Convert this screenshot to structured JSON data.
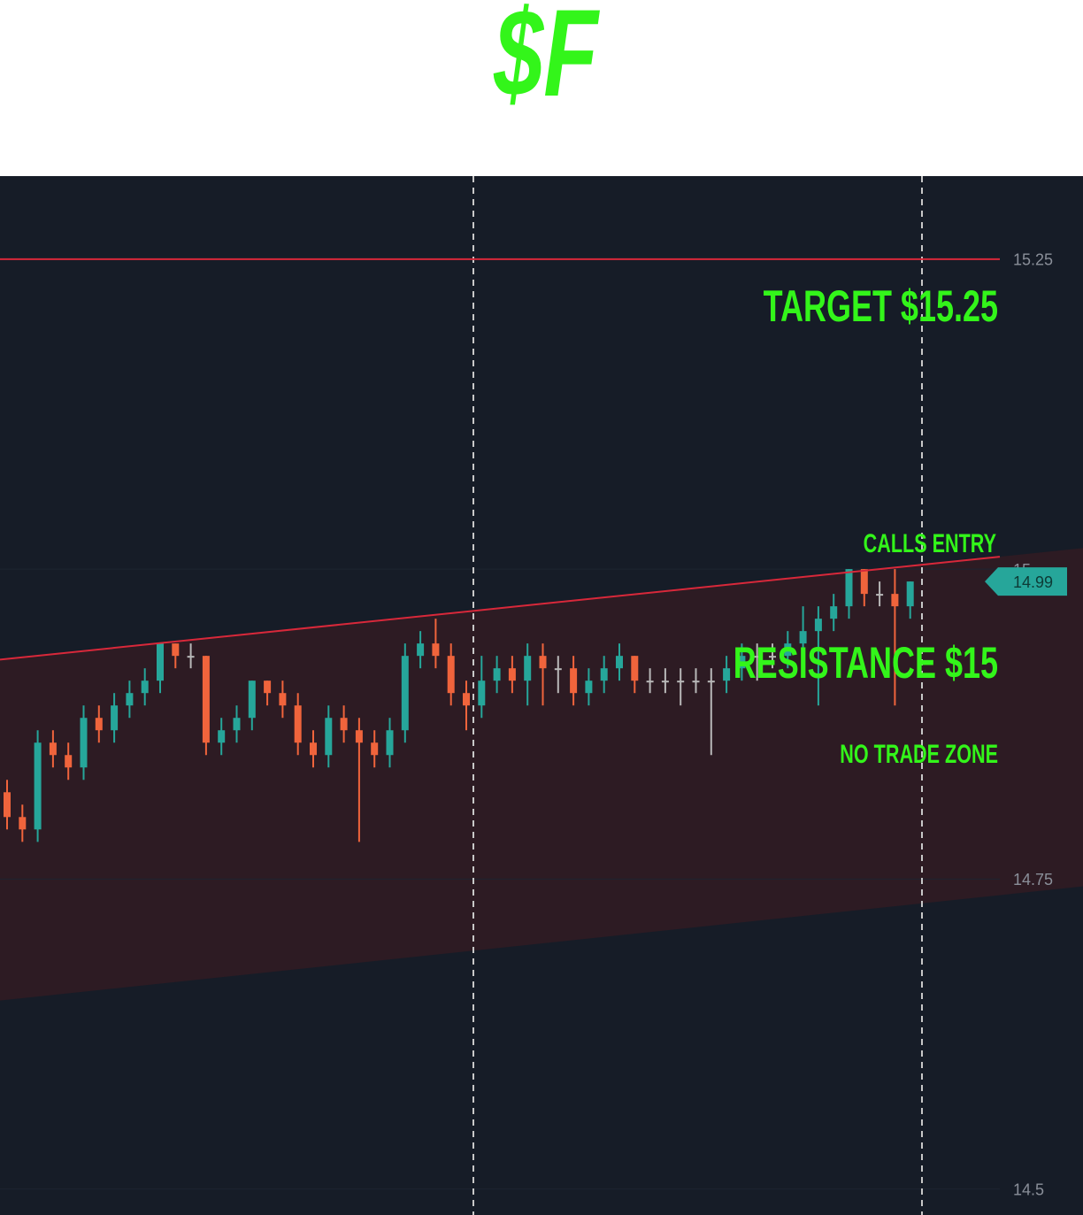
{
  "chart_data": {
    "type": "candlestick",
    "title": "$F",
    "ylim": [
      14.479,
      15.317
    ],
    "yticks": [
      15.25,
      15,
      14.75,
      14.5
    ],
    "up_color": "#26a69a",
    "down_color": "#f0643c",
    "flat_color": "#b8b8b8",
    "open": [
      14.82,
      14.8,
      14.79,
      14.86,
      14.85,
      14.84,
      14.88,
      14.87,
      14.89,
      14.9,
      14.91,
      14.94,
      14.93,
      14.93,
      14.86,
      14.87,
      14.88,
      14.91,
      14.9,
      14.89,
      14.86,
      14.85,
      14.88,
      14.87,
      14.86,
      14.85,
      14.87,
      14.93,
      14.94,
      14.93,
      14.9,
      14.89,
      14.91,
      14.92,
      14.91,
      14.93,
      14.92,
      14.92,
      14.9,
      14.91,
      14.92,
      14.93,
      14.91,
      14.91,
      14.91,
      14.91,
      14.91,
      14.91,
      14.92,
      14.93,
      14.93,
      14.93,
      14.94,
      14.95,
      14.96,
      14.97,
      15.0,
      14.98,
      14.98,
      14.97
    ],
    "high": [
      14.83,
      14.81,
      14.87,
      14.87,
      14.86,
      14.89,
      14.89,
      14.9,
      14.91,
      14.92,
      14.94,
      14.94,
      14.94,
      14.93,
      14.88,
      14.89,
      14.91,
      14.91,
      14.91,
      14.9,
      14.87,
      14.89,
      14.89,
      14.88,
      14.87,
      14.88,
      14.94,
      14.95,
      14.96,
      14.94,
      14.91,
      14.93,
      14.93,
      14.93,
      14.94,
      14.94,
      14.93,
      14.93,
      14.92,
      14.93,
      14.94,
      14.93,
      14.92,
      14.92,
      14.92,
      14.92,
      14.92,
      14.93,
      14.94,
      14.94,
      14.94,
      14.95,
      14.97,
      14.97,
      14.98,
      15.0,
      15.0,
      14.99,
      15.0,
      14.99
    ],
    "low": [
      14.79,
      14.78,
      14.78,
      14.84,
      14.83,
      14.83,
      14.86,
      14.86,
      14.88,
      14.89,
      14.9,
      14.92,
      14.92,
      14.85,
      14.85,
      14.86,
      14.87,
      14.89,
      14.88,
      14.85,
      14.84,
      14.84,
      14.86,
      14.78,
      14.84,
      14.84,
      14.86,
      14.92,
      14.92,
      14.89,
      14.87,
      14.88,
      14.9,
      14.9,
      14.89,
      14.89,
      14.9,
      14.89,
      14.89,
      14.9,
      14.91,
      14.9,
      14.9,
      14.9,
      14.89,
      14.9,
      14.85,
      14.9,
      14.91,
      14.91,
      14.92,
      14.92,
      14.93,
      14.89,
      14.95,
      14.96,
      14.97,
      14.97,
      14.89,
      14.96
    ],
    "close": [
      14.8,
      14.79,
      14.86,
      14.85,
      14.84,
      14.88,
      14.87,
      14.89,
      14.9,
      14.91,
      14.94,
      14.93,
      14.93,
      14.86,
      14.87,
      14.88,
      14.91,
      14.9,
      14.89,
      14.86,
      14.85,
      14.88,
      14.87,
      14.86,
      14.85,
      14.87,
      14.93,
      14.94,
      14.93,
      14.9,
      14.89,
      14.91,
      14.92,
      14.91,
      14.93,
      14.92,
      14.92,
      14.9,
      14.91,
      14.92,
      14.93,
      14.91,
      14.91,
      14.91,
      14.91,
      14.91,
      14.91,
      14.92,
      14.93,
      14.93,
      14.93,
      14.94,
      14.95,
      14.96,
      14.97,
      15.0,
      14.98,
      14.98,
      14.97,
      14.99
    ],
    "target_line": 15.25,
    "channel": {
      "upper": [
        14.927,
        15.01
      ],
      "lower": [
        14.652,
        14.737
      ]
    },
    "last_price": 14.99,
    "annotations": [
      "TARGET $15.25",
      "CALLS ENTRY",
      "RESISTANCE $15",
      "NO TRADE ZONE"
    ]
  }
}
